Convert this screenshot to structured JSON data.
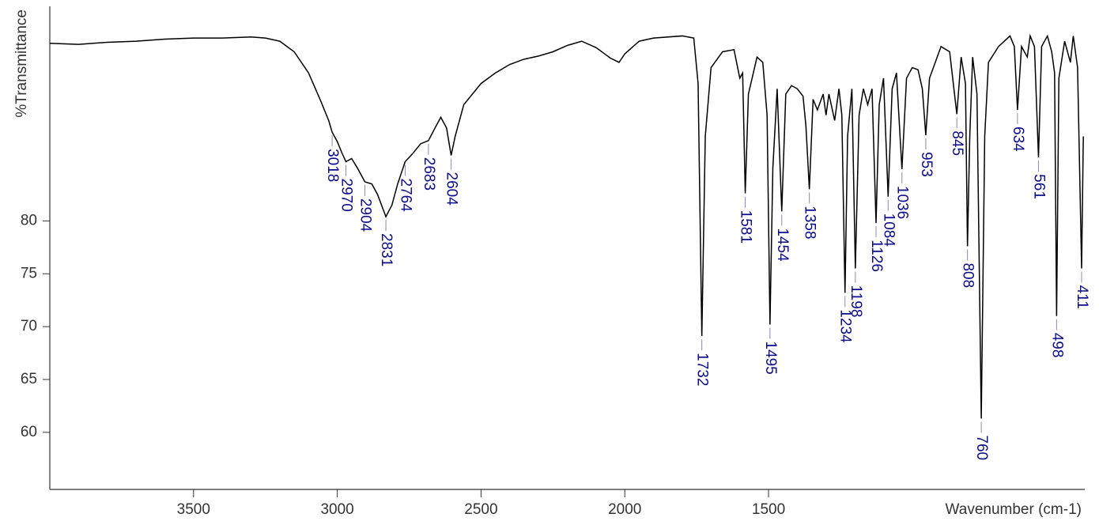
{
  "chart_data": {
    "type": "line",
    "y_label": "%Transmittance",
    "x_label": "Wavenumber  (cm-1)",
    "xlim": [
      4000,
      400
    ],
    "ylim": [
      54.6,
      100.3
    ],
    "xticks": [
      3500,
      3000,
      2500,
      2000,
      1500
    ],
    "yticks": [
      60,
      65,
      70,
      75,
      80
    ],
    "grid": false,
    "label_color": "#0a0a8a",
    "x": [
      4000,
      3900,
      3800,
      3700,
      3600,
      3500,
      3400,
      3300,
      3250,
      3200,
      3150,
      3100,
      3060,
      3030,
      3018,
      3000,
      2985,
      2970,
      2950,
      2930,
      2904,
      2880,
      2860,
      2831,
      2810,
      2790,
      2764,
      2740,
      2710,
      2683,
      2660,
      2640,
      2620,
      2604,
      2590,
      2560,
      2500,
      2450,
      2400,
      2350,
      2300,
      2250,
      2200,
      2150,
      2100,
      2050,
      2020,
      2000,
      1950,
      1900,
      1800,
      1760,
      1745,
      1732,
      1720,
      1700,
      1660,
      1620,
      1600,
      1590,
      1581,
      1570,
      1540,
      1520,
      1505,
      1495,
      1485,
      1470,
      1454,
      1440,
      1420,
      1400,
      1380,
      1370,
      1358,
      1345,
      1330,
      1310,
      1300,
      1290,
      1270,
      1255,
      1245,
      1234,
      1225,
      1210,
      1198,
      1185,
      1170,
      1155,
      1140,
      1126,
      1115,
      1100,
      1084,
      1070,
      1055,
      1036,
      1020,
      1000,
      980,
      965,
      953,
      940,
      920,
      900,
      870,
      845,
      830,
      815,
      808,
      800,
      790,
      775,
      760,
      748,
      735,
      700,
      660,
      645,
      634,
      620,
      600,
      590,
      575,
      561,
      550,
      530,
      515,
      505,
      498,
      490,
      470,
      450,
      440,
      425,
      411,
      405
    ],
    "series": [
      {
        "color": "#000000",
        "values": [
          96.8,
          96.7,
          96.9,
          97.0,
          97.2,
          97.3,
          97.3,
          97.4,
          97.3,
          97.0,
          96.0,
          94.0,
          91.5,
          89.5,
          88.4,
          87.5,
          86.5,
          85.6,
          85.9,
          85.0,
          83.7,
          83.5,
          82.5,
          80.4,
          81.5,
          83.5,
          85.6,
          86.3,
          87.3,
          87.6,
          88.8,
          89.8,
          88.8,
          86.2,
          88.0,
          91.0,
          93.0,
          94.0,
          94.8,
          95.3,
          95.6,
          96.0,
          96.6,
          97.0,
          96.4,
          95.4,
          95.0,
          95.8,
          97.0,
          97.3,
          97.5,
          97.3,
          93.0,
          69.1,
          88.0,
          94.5,
          96.0,
          96.2,
          93.5,
          94.0,
          82.6,
          92.0,
          95.5,
          95.0,
          90.0,
          70.2,
          85.0,
          92.5,
          80.9,
          92.0,
          92.8,
          92.5,
          91.8,
          89.0,
          83.0,
          91.5,
          90.5,
          92.0,
          90.0,
          92.0,
          89.5,
          92.5,
          90.0,
          73.2,
          88.0,
          92.5,
          75.5,
          90.0,
          92.5,
          91.0,
          92.5,
          79.8,
          91.0,
          93.5,
          82.3,
          92.5,
          94.0,
          84.9,
          93.5,
          94.5,
          94.3,
          92.5,
          88.1,
          93.5,
          95.0,
          96.5,
          96.0,
          90.1,
          95.5,
          93.0,
          77.6,
          88.0,
          95.5,
          92.0,
          61.3,
          88.0,
          95.0,
          96.5,
          97.5,
          96.5,
          90.5,
          96.5,
          95.5,
          97.5,
          96.5,
          86.0,
          96.5,
          97.5,
          96.0,
          94.0,
          71.0,
          93.5,
          97.0,
          95.0,
          97.5,
          94.5,
          75.5,
          88.0
        ]
      }
    ],
    "peaks": [
      {
        "x": 3018,
        "y": 88.4
      },
      {
        "x": 2970,
        "y": 85.6
      },
      {
        "x": 2904,
        "y": 83.7
      },
      {
        "x": 2831,
        "y": 80.4
      },
      {
        "x": 2764,
        "y": 85.6
      },
      {
        "x": 2683,
        "y": 87.6
      },
      {
        "x": 2604,
        "y": 86.2
      },
      {
        "x": 1732,
        "y": 69.1
      },
      {
        "x": 1581,
        "y": 82.6
      },
      {
        "x": 1495,
        "y": 70.2
      },
      {
        "x": 1454,
        "y": 80.9
      },
      {
        "x": 1358,
        "y": 83.0
      },
      {
        "x": 1234,
        "y": 73.2
      },
      {
        "x": 1198,
        "y": 75.5
      },
      {
        "x": 1126,
        "y": 79.8
      },
      {
        "x": 1084,
        "y": 82.3
      },
      {
        "x": 1036,
        "y": 84.9
      },
      {
        "x": 953,
        "y": 88.1
      },
      {
        "x": 845,
        "y": 90.1
      },
      {
        "x": 808,
        "y": 77.6
      },
      {
        "x": 760,
        "y": 61.3
      },
      {
        "x": 634,
        "y": 90.5
      },
      {
        "x": 561,
        "y": 86.0
      },
      {
        "x": 498,
        "y": 71.0
      },
      {
        "x": 411,
        "y": 75.5
      }
    ]
  }
}
